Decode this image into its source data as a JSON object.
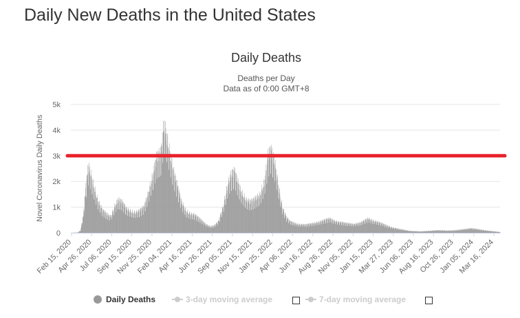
{
  "page": {
    "title": "Daily New Deaths in the United States"
  },
  "chart_data": {
    "type": "bar",
    "title": "Daily Deaths",
    "subtitle": [
      "Deaths per Day",
      "Data as of 0:00 GMT+8"
    ],
    "ylabel": "Novel Coronavirus Daily Deaths",
    "xlabel": "",
    "ylim": [
      0,
      5000
    ],
    "y_ticks": [
      0,
      1000,
      2000,
      3000,
      4000,
      5000
    ],
    "y_tick_labels": [
      "0",
      "1k",
      "2k",
      "3k",
      "4k",
      "5k"
    ],
    "x_range": [
      "2020-02-15",
      "2024-04-25"
    ],
    "x_tick_labels": [
      "Feb 15, 2020",
      "Apr 26, 2020",
      "Jul 06, 2020",
      "Sep 15, 2020",
      "Nov 25, 2020",
      "Feb 04, 2021",
      "Apr 16, 2021",
      "Jun 26, 2021",
      "Sep 05, 2021",
      "Nov 15, 2021",
      "Jan 25, 2022",
      "Apr 06, 2022",
      "Jun 16, 2022",
      "Aug 26, 2022",
      "Nov 05, 2022",
      "Jan 15, 2023",
      "Mar 27, 2023",
      "Jun 06, 2023",
      "Aug 16, 2023",
      "Oct 26, 2023",
      "Jan 05, 2024",
      "Mar 16, 2024"
    ],
    "grid": true,
    "bar_color": "#999999",
    "series_name": "Daily Deaths",
    "series_profile": {
      "description_unit": "deaths per day, approximate values read at dates",
      "points": [
        [
          "2020-02-15",
          0
        ],
        [
          "2020-03-10",
          10
        ],
        [
          "2020-03-20",
          100
        ],
        [
          "2020-03-30",
          700
        ],
        [
          "2020-04-08",
          1800
        ],
        [
          "2020-04-17",
          2600
        ],
        [
          "2020-04-25",
          2300
        ],
        [
          "2020-05-05",
          1900
        ],
        [
          "2020-05-20",
          1300
        ],
        [
          "2020-06-05",
          900
        ],
        [
          "2020-06-25",
          700
        ],
        [
          "2020-07-06",
          650
        ],
        [
          "2020-07-20",
          1050
        ],
        [
          "2020-08-01",
          1300
        ],
        [
          "2020-08-15",
          1200
        ],
        [
          "2020-08-30",
          950
        ],
        [
          "2020-09-15",
          850
        ],
        [
          "2020-09-30",
          800
        ],
        [
          "2020-10-15",
          850
        ],
        [
          "2020-11-01",
          1000
        ],
        [
          "2020-11-15",
          1500
        ],
        [
          "2020-12-01",
          2200
        ],
        [
          "2020-12-15",
          2900
        ],
        [
          "2021-01-01",
          3100
        ],
        [
          "2021-01-12",
          4200
        ],
        [
          "2021-01-20",
          3900
        ],
        [
          "2021-02-01",
          3200
        ],
        [
          "2021-02-15",
          2400
        ],
        [
          "2021-03-01",
          1800
        ],
        [
          "2021-03-15",
          1200
        ],
        [
          "2021-04-01",
          850
        ],
        [
          "2021-04-16",
          750
        ],
        [
          "2021-05-01",
          700
        ],
        [
          "2021-05-20",
          550
        ],
        [
          "2021-06-10",
          350
        ],
        [
          "2021-06-26",
          250
        ],
        [
          "2021-07-10",
          280
        ],
        [
          "2021-07-25",
          450
        ],
        [
          "2021-08-10",
          1000
        ],
        [
          "2021-08-25",
          1800
        ],
        [
          "2021-09-05",
          2200
        ],
        [
          "2021-09-20",
          2400
        ],
        [
          "2021-10-01",
          2000
        ],
        [
          "2021-10-15",
          1600
        ],
        [
          "2021-11-01",
          1300
        ],
        [
          "2021-11-15",
          1200
        ],
        [
          "2021-12-01",
          1300
        ],
        [
          "2021-12-20",
          1500
        ],
        [
          "2022-01-05",
          2000
        ],
        [
          "2022-01-18",
          3000
        ],
        [
          "2022-01-28",
          3200
        ],
        [
          "2022-02-10",
          2800
        ],
        [
          "2022-02-25",
          1800
        ],
        [
          "2022-03-10",
          1000
        ],
        [
          "2022-03-25",
          600
        ],
        [
          "2022-04-06",
          450
        ],
        [
          "2022-05-01",
          350
        ],
        [
          "2022-06-01",
          320
        ],
        [
          "2022-07-01",
          380
        ],
        [
          "2022-08-01",
          480
        ],
        [
          "2022-08-26",
          560
        ],
        [
          "2022-09-20",
          450
        ],
        [
          "2022-10-20",
          380
        ],
        [
          "2022-11-20",
          350
        ],
        [
          "2022-12-15",
          400
        ],
        [
          "2023-01-10",
          560
        ],
        [
          "2023-01-25",
          500
        ],
        [
          "2023-02-15",
          420
        ],
        [
          "2023-03-10",
          320
        ],
        [
          "2023-04-01",
          230
        ],
        [
          "2023-05-01",
          150
        ],
        [
          "2023-06-06",
          80
        ],
        [
          "2023-07-15",
          55
        ],
        [
          "2023-08-16",
          80
        ],
        [
          "2023-09-15",
          100
        ],
        [
          "2023-10-26",
          90
        ],
        [
          "2023-11-20",
          100
        ],
        [
          "2023-12-20",
          150
        ],
        [
          "2024-01-10",
          180
        ],
        [
          "2024-02-01",
          150
        ],
        [
          "2024-03-16",
          80
        ],
        [
          "2024-04-25",
          30
        ]
      ]
    },
    "reference_line": {
      "value": 3000,
      "color": "#e8232a"
    },
    "legend": {
      "position": "bottom",
      "items": [
        {
          "label": "Daily Deaths",
          "active": true
        },
        {
          "label": "3-day moving average",
          "active": false
        },
        {
          "label": "7-day moving average",
          "active": false
        }
      ]
    }
  }
}
